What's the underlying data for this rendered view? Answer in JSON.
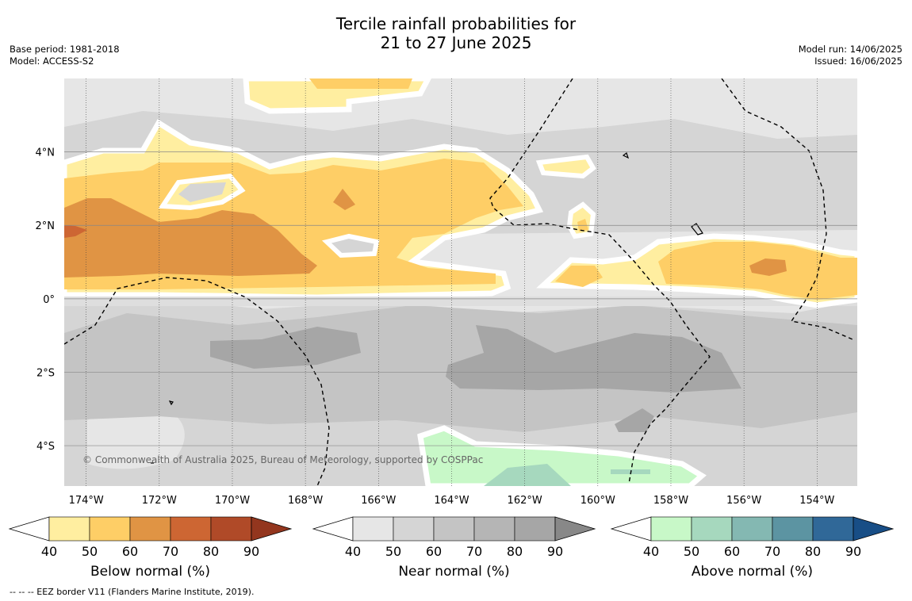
{
  "title_line1": "Tercile rainfall probabilities for",
  "title_line2": "21 to 27 June 2025",
  "base_period": "Base period: 1981-2018",
  "model": "Model: ACCESS-S2",
  "model_run": "Model run: 14/06/2025",
  "issued": "Issued: 16/06/2025",
  "copyright": "© Commonwealth of Australia 2025, Bureau of Meteorology, supported by COSPPac",
  "footnote": "--  --  -- EEZ border V11 (Flanders Marine Institute, 2019).",
  "axes": {
    "lon_ticks": [
      "174°W",
      "172°W",
      "170°W",
      "168°W",
      "166°W",
      "164°W",
      "162°W",
      "160°W",
      "158°W",
      "156°W",
      "154°W"
    ],
    "lon_values": [
      -174,
      -172,
      -170,
      -168,
      -166,
      -164,
      -162,
      -160,
      -158,
      -156,
      -154
    ],
    "lat_ticks": [
      "4°N",
      "2°N",
      "0°",
      "2°S",
      "4°S"
    ],
    "lat_values": [
      4,
      2,
      0,
      -2,
      -4
    ],
    "lon_range": [
      -174.6,
      -152.9
    ],
    "lat_range": [
      -5.1,
      6.0
    ]
  },
  "colorbars": [
    {
      "label": "Below normal (%)",
      "ticks": [
        "40",
        "50",
        "60",
        "70",
        "80",
        "90"
      ],
      "colors": [
        "#ffeea0",
        "#fece66",
        "#e09444",
        "#cd6633",
        "#b04a28",
        "#93361e"
      ]
    },
    {
      "label": "Near normal (%)",
      "ticks": [
        "40",
        "50",
        "60",
        "70",
        "80",
        "90"
      ],
      "colors": [
        "#e6e6e6",
        "#d5d5d5",
        "#c4c4c4",
        "#b5b5b5",
        "#a6a6a6",
        "#888888"
      ]
    },
    {
      "label": "Above normal (%)",
      "ticks": [
        "40",
        "50",
        "60",
        "70",
        "80",
        "90"
      ],
      "colors": [
        "#c8f8c8",
        "#a6d8be",
        "#84b8b2",
        "#5c94a2",
        "#306898",
        "#184e86"
      ]
    }
  ],
  "colors": {
    "below_40": "#ffeea0",
    "below_50": "#fece66",
    "below_60": "#e09444",
    "below_70": "#cd6633",
    "near_40": "#e6e6e6",
    "near_50": "#d5d5d5",
    "near_60": "#c4c4c4",
    "near_70": "#b5b5b5",
    "above_40": "#c8f8c8",
    "above_50": "#a6d8be"
  }
}
